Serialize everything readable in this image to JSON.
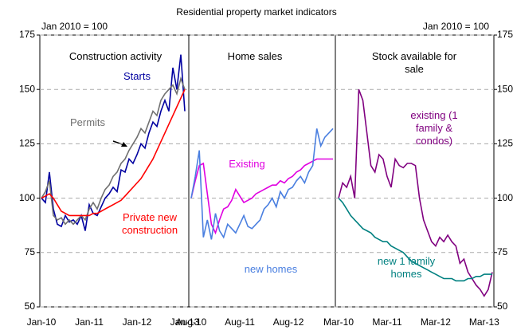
{
  "title": "Residential property market indicators",
  "chart_data": [
    {
      "type": "line",
      "title": "Construction activity",
      "note": "Jan 2010 = 100",
      "categories": [
        "Jan-10",
        null,
        null,
        null,
        null,
        null,
        null,
        null,
        null,
        null,
        null,
        null,
        "Jan-11",
        null,
        null,
        null,
        null,
        null,
        null,
        null,
        null,
        null,
        null,
        null,
        "Jan-12",
        null,
        null,
        null,
        null,
        null,
        null,
        null,
        null,
        null,
        null,
        null,
        "Jan-13"
      ],
      "ylim": [
        50,
        175
      ],
      "yticks": [
        50,
        75,
        100,
        125,
        150,
        175
      ],
      "grid": true,
      "series": [
        {
          "name": "Starts",
          "color": "#0000a0",
          "values": [
            100,
            98,
            112,
            95,
            88,
            87,
            92,
            89,
            90,
            88,
            92,
            85,
            97,
            93,
            92,
            96,
            100,
            102,
            105,
            103,
            113,
            112,
            118,
            116,
            120,
            125,
            123,
            130,
            135,
            133,
            140,
            145,
            140,
            160,
            150,
            166,
            140
          ]
        },
        {
          "name": "Permits",
          "color": "#707070",
          "values": [
            100,
            103,
            108,
            92,
            90,
            91,
            88,
            90,
            88,
            90,
            92,
            90,
            95,
            98,
            95,
            100,
            104,
            106,
            110,
            112,
            116,
            118,
            122,
            125,
            128,
            132,
            130,
            135,
            140,
            138,
            145,
            148,
            150,
            152,
            148,
            155,
            150
          ]
        },
        {
          "name": "Private new construction",
          "color": "#ff0000",
          "values": [
            100,
            101,
            102,
            100,
            97,
            94,
            93,
            92,
            92,
            92,
            92,
            92,
            92,
            93,
            93,
            94,
            95,
            96,
            97,
            98,
            99,
            101,
            103,
            105,
            107,
            109,
            112,
            115,
            118,
            122,
            126,
            130,
            134,
            138,
            142,
            146,
            150
          ]
        }
      ]
    },
    {
      "type": "line",
      "title": "Home sales",
      "categories": [
        "Aug-10",
        null,
        null,
        null,
        null,
        null,
        null,
        null,
        null,
        null,
        null,
        null,
        "Aug-11",
        null,
        null,
        null,
        null,
        null,
        null,
        null,
        null,
        null,
        null,
        null,
        "Aug-12",
        null,
        null,
        null,
        null,
        null,
        null,
        null,
        null,
        null,
        null,
        null
      ],
      "ylim": [
        50,
        175
      ],
      "series": [
        {
          "name": "Existing",
          "color": "#e000e0",
          "values": [
            100,
            108,
            115,
            116,
            102,
            88,
            84,
            90,
            95,
            96,
            99,
            104,
            101,
            98,
            99,
            100,
            102,
            103,
            104,
            105,
            106,
            106,
            108,
            107,
            109,
            110,
            112,
            113,
            115,
            116,
            117,
            118,
            118,
            118,
            118,
            118
          ]
        },
        {
          "name": "new homes",
          "color": "#4a7fe0",
          "values": [
            100,
            110,
            122,
            82,
            90,
            81,
            93,
            85,
            82,
            88,
            86,
            84,
            88,
            92,
            87,
            86,
            88,
            90,
            95,
            97,
            100,
            96,
            103,
            100,
            104,
            105,
            108,
            110,
            107,
            112,
            115,
            132,
            124,
            128,
            130,
            132
          ]
        }
      ]
    },
    {
      "type": "line",
      "title": "Stock available for sale",
      "note": "Jan 2010 = 100",
      "categories": [
        "Mar-10",
        null,
        null,
        null,
        null,
        null,
        null,
        null,
        null,
        null,
        null,
        null,
        "Mar-11",
        null,
        null,
        null,
        null,
        null,
        null,
        null,
        null,
        null,
        null,
        null,
        "Mar-12",
        null,
        null,
        null,
        null,
        null,
        null,
        null,
        null,
        null,
        null,
        null,
        "Mar-13",
        null,
        null
      ],
      "ylim": [
        50,
        175
      ],
      "yticks": [
        50,
        75,
        100,
        125,
        150,
        175
      ],
      "series": [
        {
          "name": "existing (1 family & condos)",
          "color": "#800080",
          "values": [
            100,
            107,
            105,
            110,
            100,
            150,
            145,
            130,
            115,
            112,
            120,
            118,
            110,
            105,
            118,
            115,
            114,
            116,
            116,
            115,
            100,
            90,
            85,
            80,
            78,
            82,
            80,
            83,
            80,
            78,
            70,
            72,
            66,
            63,
            60,
            58,
            55,
            58,
            66
          ]
        },
        {
          "name": "new 1 family homes",
          "color": "#008080",
          "values": [
            100,
            98,
            95,
            92,
            90,
            88,
            86,
            85,
            84,
            82,
            81,
            80,
            80,
            78,
            77,
            76,
            75,
            73,
            71,
            70,
            69,
            68,
            67,
            66,
            65,
            64,
            63,
            63,
            63,
            62,
            62,
            62,
            63,
            63,
            64,
            64,
            65,
            65,
            65
          ]
        }
      ]
    }
  ]
}
